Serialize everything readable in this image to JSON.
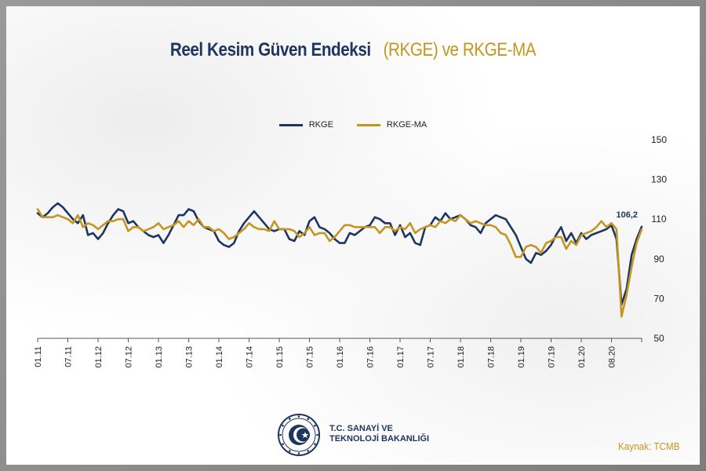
{
  "title": {
    "part1": "Reel Kesim Güven Endeksi",
    "part2": "(RKGE) ve RKGE-MA"
  },
  "legend": [
    {
      "name": "RKGE",
      "color": "#1e3560"
    },
    {
      "name": "RKGE-MA",
      "color": "#c3961f"
    }
  ],
  "chart_data": {
    "type": "line",
    "x_range": [
      "2011-01",
      "2020-08"
    ],
    "x_tick_labels": [
      "01.11",
      "07.11",
      "01.12",
      "07.12",
      "01.13",
      "07.13",
      "01.14",
      "07.14",
      "01.15",
      "07.15",
      "01.16",
      "07.16",
      "01.17",
      "07.17",
      "01.18",
      "07.18",
      "01.19",
      "07.19",
      "01.20",
      "08.20"
    ],
    "y_ticks": [
      50,
      70,
      90,
      110,
      130,
      150
    ],
    "ylim": [
      50,
      150
    ],
    "y_axis_position": "right",
    "grid": false,
    "legend_position": "top-center",
    "annotation": {
      "text": "106,2",
      "series": "RKGE",
      "x": "2020-08"
    },
    "series": [
      {
        "name": "RKGE",
        "color": "#1e3560",
        "values": [
          113,
          111,
          113,
          116,
          118,
          116,
          113,
          110,
          108,
          112,
          102,
          103,
          100,
          103,
          108,
          112,
          115,
          114,
          108,
          109,
          106,
          104,
          102,
          101,
          102,
          98,
          102,
          107,
          112,
          112,
          115,
          114,
          109,
          106,
          105,
          104,
          99,
          97,
          96,
          98,
          104,
          108,
          111,
          114,
          111,
          108,
          105,
          104,
          105,
          105,
          100,
          99,
          104,
          102,
          109,
          111,
          106,
          105,
          103,
          100,
          98,
          98,
          103,
          102,
          104,
          106,
          107,
          111,
          110,
          108,
          108,
          102,
          107,
          101,
          103,
          98,
          97,
          106,
          107,
          111,
          109,
          113,
          110,
          111,
          112,
          110,
          107,
          106,
          103,
          108,
          110,
          112,
          111,
          110,
          106,
          102,
          96,
          90,
          88,
          93,
          92,
          94,
          97,
          102,
          106,
          99,
          103,
          98,
          103,
          100,
          102,
          103,
          104,
          105,
          107,
          100,
          67,
          75,
          92,
          100,
          106.2
        ],
        "ma_note": ""
      },
      {
        "name": "RKGE-MA",
        "color": "#c3961f",
        "values": [
          115,
          111,
          111,
          111,
          112,
          111,
          110,
          108,
          112,
          106,
          108,
          107,
          105,
          107,
          109,
          109,
          110,
          110,
          104,
          106,
          106,
          104,
          105,
          106,
          108,
          105,
          106,
          107,
          109,
          106,
          109,
          107,
          110,
          106,
          106,
          104,
          105,
          103,
          100,
          101,
          103,
          105,
          108,
          106,
          105,
          105,
          104,
          109,
          105,
          105,
          105,
          104,
          101,
          103,
          106,
          102,
          103,
          103,
          99,
          101,
          104,
          107,
          107,
          106,
          106,
          106,
          106,
          106,
          103,
          106,
          106,
          104,
          106,
          105,
          108,
          103,
          105,
          106,
          107,
          106,
          109,
          108,
          110,
          109,
          112,
          110,
          108,
          109,
          108,
          107,
          107,
          106,
          103,
          102,
          97,
          91,
          91,
          96,
          97,
          96,
          93,
          98,
          99,
          101,
          101,
          95,
          99,
          97,
          102,
          103,
          104,
          106,
          109,
          106,
          108,
          105,
          61,
          72,
          86,
          98,
          105
        ]
      }
    ]
  },
  "footer": {
    "ministry_line1": "T.C. SANAYİ VE",
    "ministry_line2": "TEKNOLOJİ BAKANLIĞI",
    "source": "Kaynak: TCMB"
  }
}
